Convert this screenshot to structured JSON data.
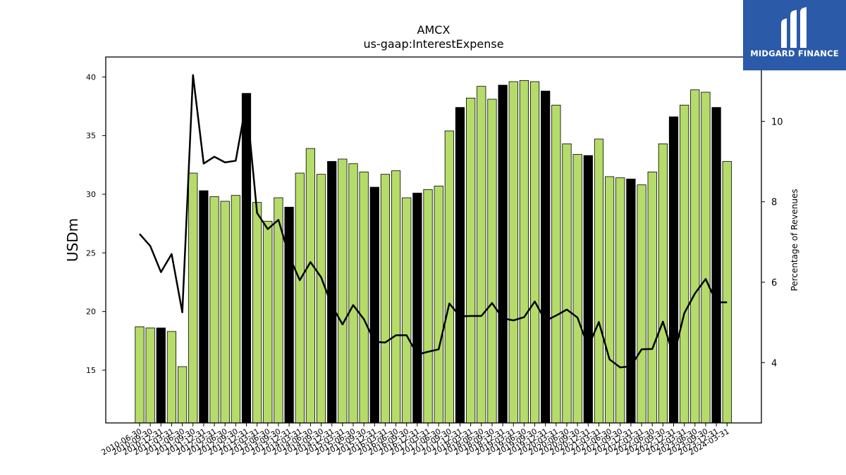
{
  "logo": {
    "text": "MIDGARD FINANCE"
  },
  "colors": {
    "bar_green": "#b5dc6a",
    "bar_black": "#000000",
    "line": "#000000",
    "logo_bg": "#2b5aa8"
  },
  "chart_data": {
    "type": "bar",
    "title": "AMCX",
    "subtitle": "us-gaap:InterestExpense",
    "ylabel": "USDm",
    "y2label": "Percentage of Revenues",
    "ylim": [
      10.5,
      41.7
    ],
    "y2lim": [
      2.5,
      11.6
    ],
    "yticks": [
      15,
      20,
      25,
      30,
      35,
      40
    ],
    "y2ticks": [
      4,
      6,
      8,
      10
    ],
    "categories": [
      "2010-06-30",
      "2010-09-30",
      "2010-12-31",
      "2011-03-31",
      "2011-06-30",
      "2011-09-30",
      "2011-12-31",
      "2012-03-31",
      "2012-06-30",
      "2012-09-30",
      "2012-12-31",
      "2013-03-31",
      "2013-06-30",
      "2013-09-30",
      "2013-12-31",
      "2014-03-31",
      "2014-06-30",
      "2014-09-30",
      "2014-12-31",
      "2015-03-31",
      "2015-06-30",
      "2015-09-30",
      "2015-12-31",
      "2016-03-31",
      "2016-06-30",
      "2016-09-30",
      "2016-12-31",
      "2017-03-31",
      "2017-06-30",
      "2017-09-30",
      "2017-12-31",
      "2018-03-31",
      "2018-06-30",
      "2018-09-30",
      "2018-12-31",
      "2019-03-31",
      "2019-06-30",
      "2019-09-30",
      "2019-12-31",
      "2020-03-31",
      "2020-06-30",
      "2020-09-30",
      "2020-12-31",
      "2021-03-31",
      "2021-06-30",
      "2021-09-30",
      "2021-12-31",
      "2022-03-31",
      "2022-06-30",
      "2022-09-30",
      "2022-12-31",
      "2023-03-31",
      "2023-06-30",
      "2023-09-30",
      "2023-12-31",
      "2024-03-31"
    ],
    "series": [
      {
        "type": "bar",
        "values": [
          18.7,
          18.6,
          18.6,
          18.3,
          15.3,
          31.8,
          30.3,
          29.8,
          29.4,
          29.9,
          38.6,
          29.3,
          27.7,
          29.7,
          28.9,
          31.8,
          33.9,
          31.7,
          32.8,
          33.0,
          32.6,
          31.9,
          30.6,
          31.7,
          32.0,
          29.7,
          30.1,
          30.4,
          30.7,
          35.4,
          37.4,
          38.2,
          39.2,
          38.1,
          39.3,
          39.6,
          39.7,
          39.6,
          38.8,
          37.6,
          34.3,
          33.4,
          33.3,
          34.7,
          31.5,
          31.4,
          31.3,
          30.8,
          31.9,
          34.3,
          36.6,
          37.6,
          38.9,
          38.7,
          37.4,
          32.8
        ],
        "highlight": [
          false,
          false,
          true,
          false,
          false,
          false,
          true,
          false,
          false,
          false,
          true,
          false,
          false,
          false,
          true,
          false,
          false,
          false,
          true,
          false,
          false,
          false,
          true,
          false,
          false,
          false,
          true,
          false,
          false,
          false,
          true,
          false,
          false,
          false,
          true,
          false,
          false,
          false,
          true,
          false,
          false,
          false,
          true,
          false,
          false,
          false,
          true,
          false,
          false,
          false,
          true,
          false,
          false,
          false,
          true,
          false
        ]
      },
      {
        "type": "line",
        "axis": "right",
        "values": [
          7.2,
          6.9,
          6.25,
          6.7,
          5.25,
          11.15,
          8.95,
          9.12,
          8.98,
          9.02,
          10.5,
          7.72,
          7.32,
          7.55,
          6.65,
          6.05,
          6.5,
          6.12,
          5.42,
          4.95,
          5.43,
          5.08,
          4.52,
          4.5,
          4.68,
          4.68,
          4.2,
          4.27,
          4.33,
          5.47,
          5.15,
          5.16,
          5.16,
          5.48,
          5.1,
          5.05,
          5.13,
          5.52,
          5.04,
          5.17,
          5.32,
          5.12,
          4.39,
          5.01,
          4.08,
          3.88,
          3.91,
          4.33,
          4.34,
          5.02,
          4.14,
          5.23,
          5.72,
          6.08,
          5.5,
          5.5
        ]
      }
    ]
  }
}
